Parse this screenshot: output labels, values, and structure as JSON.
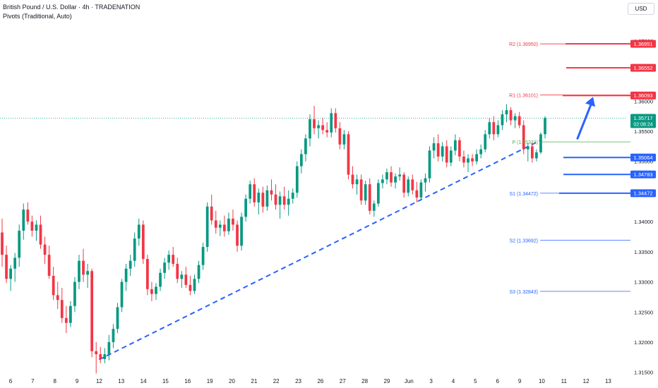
{
  "header": {
    "title": "British Pound / U.S. Dollar · 4h · TRADENATION",
    "indicator": "Pivots (Traditional, Auto)",
    "currency_button": "USD"
  },
  "colors": {
    "bull": "#089981",
    "bear": "#f23645",
    "resistance": "#f23645",
    "support": "#2962ff",
    "pivot": "#4caf50",
    "trendline": "#2962ff",
    "projection_arrow": "#2962ff"
  },
  "chart_data": {
    "type": "candlestick",
    "symbol": "GBPUSD",
    "timeframe": "4h",
    "ylim": [
      1.3145,
      1.3735
    ],
    "y_ticks": [
      "1.31500",
      "1.32000",
      "1.32500",
      "1.33000",
      "1.33500",
      "1.34000",
      "1.34500",
      "1.35000",
      "1.35500",
      "1.36000",
      "1.37000"
    ],
    "x_ticks": [
      "6",
      "7",
      "8",
      "9",
      "12",
      "13",
      "14",
      "15",
      "16",
      "19",
      "20",
      "21",
      "22",
      "23",
      "26",
      "27",
      "28",
      "29",
      "Jun",
      "3",
      "4",
      "5",
      "6",
      "9",
      "10",
      "11",
      "12",
      "13"
    ],
    "last_price": "1.35717",
    "countdown": "02:08:24",
    "pivots": [
      {
        "label": "R2 (1.36950)",
        "value": 1.3695
      },
      {
        "label": "R1 (1.36101)",
        "value": 1.36101
      },
      {
        "label": "P (1.35323)",
        "value": 1.35323
      },
      {
        "label": "S1 (1.34472)",
        "value": 1.34472
      },
      {
        "label": "S2 (1.33692)",
        "value": 1.33692
      },
      {
        "label": "S3 (1.32843)",
        "value": 1.32843
      }
    ],
    "price_tags": [
      {
        "text": "1.36951",
        "value": 1.36951,
        "kind": "resistance"
      },
      {
        "text": "1.36552",
        "value": 1.36552,
        "kind": "resistance"
      },
      {
        "text": "1.36093",
        "value": 1.36093,
        "kind": "resistance"
      },
      {
        "text": "1.35717",
        "value": 1.35717,
        "kind": "last"
      },
      {
        "text": "1.35064",
        "value": 1.35064,
        "kind": "support"
      },
      {
        "text": "1.34783",
        "value": 1.34783,
        "kind": "support"
      },
      {
        "text": "1.34472",
        "value": 1.34472,
        "kind": "support"
      }
    ],
    "trendline": {
      "from": [
        1.3171,
        "12"
      ],
      "to": [
        1.3536,
        "10"
      ]
    },
    "projection_arrow": {
      "from": 1.3538,
      "to": 1.3607
    },
    "ohlc": [
      [
        1.3382,
        1.3405,
        1.3325,
        1.3345
      ],
      [
        1.3345,
        1.336,
        1.3298,
        1.3305
      ],
      [
        1.3305,
        1.3328,
        1.3285,
        1.3322
      ],
      [
        1.3322,
        1.3348,
        1.33,
        1.334
      ],
      [
        1.334,
        1.3395,
        1.3325,
        1.3385
      ],
      [
        1.3385,
        1.343,
        1.337,
        1.342
      ],
      [
        1.342,
        1.3432,
        1.3395,
        1.34
      ],
      [
        1.34,
        1.341,
        1.3375,
        1.3385
      ],
      [
        1.3385,
        1.3402,
        1.3368,
        1.3395
      ],
      [
        1.3395,
        1.341,
        1.3355,
        1.3362
      ],
      [
        1.3362,
        1.3375,
        1.333,
        1.3345
      ],
      [
        1.3345,
        1.336,
        1.3305,
        1.331
      ],
      [
        1.331,
        1.3325,
        1.327,
        1.3278
      ],
      [
        1.3278,
        1.33,
        1.3255,
        1.327
      ],
      [
        1.327,
        1.329,
        1.3232,
        1.324
      ],
      [
        1.324,
        1.326,
        1.3215,
        1.3232
      ],
      [
        1.3232,
        1.3268,
        1.3225,
        1.326
      ],
      [
        1.326,
        1.3308,
        1.325,
        1.33
      ],
      [
        1.33,
        1.3345,
        1.3288,
        1.3335
      ],
      [
        1.3335,
        1.3355,
        1.33,
        1.3312
      ],
      [
        1.3312,
        1.333,
        1.329,
        1.3318
      ],
      [
        1.3318,
        1.3322,
        1.3175,
        1.3185
      ],
      [
        1.3185,
        1.32,
        1.3148,
        1.318
      ],
      [
        1.318,
        1.3192,
        1.3165,
        1.3172
      ],
      [
        1.3172,
        1.319,
        1.3165,
        1.318
      ],
      [
        1.318,
        1.3212,
        1.317,
        1.32
      ],
      [
        1.32,
        1.323,
        1.319,
        1.3222
      ],
      [
        1.3222,
        1.3265,
        1.3215,
        1.3258
      ],
      [
        1.3258,
        1.3305,
        1.325,
        1.33
      ],
      [
        1.33,
        1.333,
        1.3285,
        1.3322
      ],
      [
        1.3322,
        1.3345,
        1.331,
        1.3335
      ],
      [
        1.3335,
        1.3382,
        1.3325,
        1.3372
      ],
      [
        1.3372,
        1.3405,
        1.336,
        1.3395
      ],
      [
        1.3395,
        1.3402,
        1.333,
        1.3338
      ],
      [
        1.3338,
        1.3345,
        1.3278,
        1.3288
      ],
      [
        1.3288,
        1.33,
        1.3268,
        1.328
      ],
      [
        1.328,
        1.3298,
        1.327,
        1.3292
      ],
      [
        1.3292,
        1.3322,
        1.3285,
        1.3315
      ],
      [
        1.3315,
        1.334,
        1.3305,
        1.3332
      ],
      [
        1.3332,
        1.3352,
        1.332,
        1.3345
      ],
      [
        1.3345,
        1.3358,
        1.3325,
        1.333
      ],
      [
        1.333,
        1.334,
        1.3298,
        1.3305
      ],
      [
        1.3305,
        1.3318,
        1.329,
        1.3312
      ],
      [
        1.3312,
        1.3325,
        1.329,
        1.3295
      ],
      [
        1.3295,
        1.331,
        1.3278,
        1.3285
      ],
      [
        1.3285,
        1.3312,
        1.328,
        1.3305
      ],
      [
        1.3305,
        1.3335,
        1.3298,
        1.3328
      ],
      [
        1.3328,
        1.3365,
        1.332,
        1.3358
      ],
      [
        1.3358,
        1.3432,
        1.335,
        1.3425
      ],
      [
        1.3425,
        1.3445,
        1.3395,
        1.3402
      ],
      [
        1.3402,
        1.3418,
        1.338,
        1.339
      ],
      [
        1.339,
        1.3402,
        1.3376,
        1.3395
      ],
      [
        1.3395,
        1.341,
        1.3375,
        1.3384
      ],
      [
        1.3384,
        1.3415,
        1.3378,
        1.3405
      ],
      [
        1.3405,
        1.342,
        1.3385,
        1.3395
      ],
      [
        1.3395,
        1.3402,
        1.335,
        1.336
      ],
      [
        1.336,
        1.3415,
        1.3352,
        1.3408
      ],
      [
        1.3408,
        1.3445,
        1.34,
        1.3438
      ],
      [
        1.3438,
        1.3468,
        1.343,
        1.3462
      ],
      [
        1.3462,
        1.3472,
        1.3425,
        1.3432
      ],
      [
        1.3432,
        1.3455,
        1.3412,
        1.3448
      ],
      [
        1.3448,
        1.3458,
        1.3415,
        1.3425
      ],
      [
        1.3425,
        1.346,
        1.3418,
        1.3452
      ],
      [
        1.3452,
        1.347,
        1.3435,
        1.3445
      ],
      [
        1.3445,
        1.3462,
        1.342,
        1.3428
      ],
      [
        1.3428,
        1.345,
        1.3405,
        1.3442
      ],
      [
        1.3442,
        1.3458,
        1.342,
        1.3428
      ],
      [
        1.3428,
        1.3452,
        1.341,
        1.3438
      ],
      [
        1.3438,
        1.3455,
        1.343,
        1.3448
      ],
      [
        1.3448,
        1.35,
        1.344,
        1.3492
      ],
      [
        1.3492,
        1.352,
        1.348,
        1.3512
      ],
      [
        1.3512,
        1.3545,
        1.35,
        1.3538
      ],
      [
        1.3538,
        1.3578,
        1.3525,
        1.357
      ],
      [
        1.357,
        1.3592,
        1.3545,
        1.3555
      ],
      [
        1.3555,
        1.3568,
        1.3538,
        1.356
      ],
      [
        1.356,
        1.3572,
        1.3545,
        1.3552
      ],
      [
        1.3552,
        1.3565,
        1.354,
        1.3548
      ],
      [
        1.3548,
        1.3588,
        1.354,
        1.358
      ],
      [
        1.358,
        1.3588,
        1.3548,
        1.3555
      ],
      [
        1.3555,
        1.3565,
        1.352,
        1.3528
      ],
      [
        1.3528,
        1.3552,
        1.352,
        1.3545
      ],
      [
        1.3545,
        1.355,
        1.347,
        1.3478
      ],
      [
        1.3478,
        1.3492,
        1.3455,
        1.3462
      ],
      [
        1.3462,
        1.3478,
        1.3445,
        1.347
      ],
      [
        1.347,
        1.3478,
        1.3428,
        1.3435
      ],
      [
        1.3435,
        1.3468,
        1.3428,
        1.3462
      ],
      [
        1.3462,
        1.3472,
        1.3412,
        1.3418
      ],
      [
        1.3418,
        1.3435,
        1.3408,
        1.343
      ],
      [
        1.343,
        1.347,
        1.3425,
        1.3464
      ],
      [
        1.3464,
        1.3478,
        1.3455,
        1.347
      ],
      [
        1.347,
        1.3488,
        1.3462,
        1.3482
      ],
      [
        1.3482,
        1.3492,
        1.3458,
        1.3465
      ],
      [
        1.3465,
        1.348,
        1.3455,
        1.3475
      ],
      [
        1.3475,
        1.349,
        1.3468,
        1.3478
      ],
      [
        1.3478,
        1.3482,
        1.344,
        1.3448
      ],
      [
        1.3448,
        1.3475,
        1.3442,
        1.347
      ],
      [
        1.347,
        1.3478,
        1.3445,
        1.3452
      ],
      [
        1.3452,
        1.3466,
        1.3432,
        1.344
      ],
      [
        1.344,
        1.347,
        1.3435,
        1.3465
      ],
      [
        1.3465,
        1.348,
        1.345,
        1.3472
      ],
      [
        1.3472,
        1.3525,
        1.3465,
        1.3518
      ],
      [
        1.3518,
        1.354,
        1.3505,
        1.353
      ],
      [
        1.353,
        1.3545,
        1.35,
        1.3508
      ],
      [
        1.3508,
        1.3532,
        1.35,
        1.3525
      ],
      [
        1.3525,
        1.3535,
        1.349,
        1.3498
      ],
      [
        1.3498,
        1.3525,
        1.3492,
        1.3518
      ],
      [
        1.3518,
        1.3545,
        1.351,
        1.3535
      ],
      [
        1.3535,
        1.354,
        1.35,
        1.3508
      ],
      [
        1.3508,
        1.3518,
        1.349,
        1.3498
      ],
      [
        1.3498,
        1.3512,
        1.3482,
        1.3505
      ],
      [
        1.3505,
        1.3512,
        1.3492,
        1.35
      ],
      [
        1.35,
        1.352,
        1.3495,
        1.3512
      ],
      [
        1.3512,
        1.3528,
        1.3505,
        1.352
      ],
      [
        1.352,
        1.3552,
        1.3515,
        1.3545
      ],
      [
        1.3545,
        1.3572,
        1.3538,
        1.3565
      ],
      [
        1.3565,
        1.3575,
        1.3535,
        1.3545
      ],
      [
        1.3545,
        1.3568,
        1.354,
        1.356
      ],
      [
        1.356,
        1.3585,
        1.3552,
        1.3578
      ],
      [
        1.3578,
        1.3595,
        1.3565,
        1.3585
      ],
      [
        1.3585,
        1.359,
        1.356,
        1.3568
      ],
      [
        1.3568,
        1.358,
        1.3555,
        1.3575
      ],
      [
        1.3575,
        1.3582,
        1.3555,
        1.356
      ],
      [
        1.356,
        1.3568,
        1.3512,
        1.352
      ],
      [
        1.352,
        1.353,
        1.35,
        1.3525
      ],
      [
        1.3525,
        1.3532,
        1.3498,
        1.3505
      ],
      [
        1.3505,
        1.352,
        1.35,
        1.3515
      ],
      [
        1.3515,
        1.3548,
        1.3512,
        1.3545
      ],
      [
        1.3545,
        1.3575,
        1.3538,
        1.3572
      ]
    ]
  }
}
